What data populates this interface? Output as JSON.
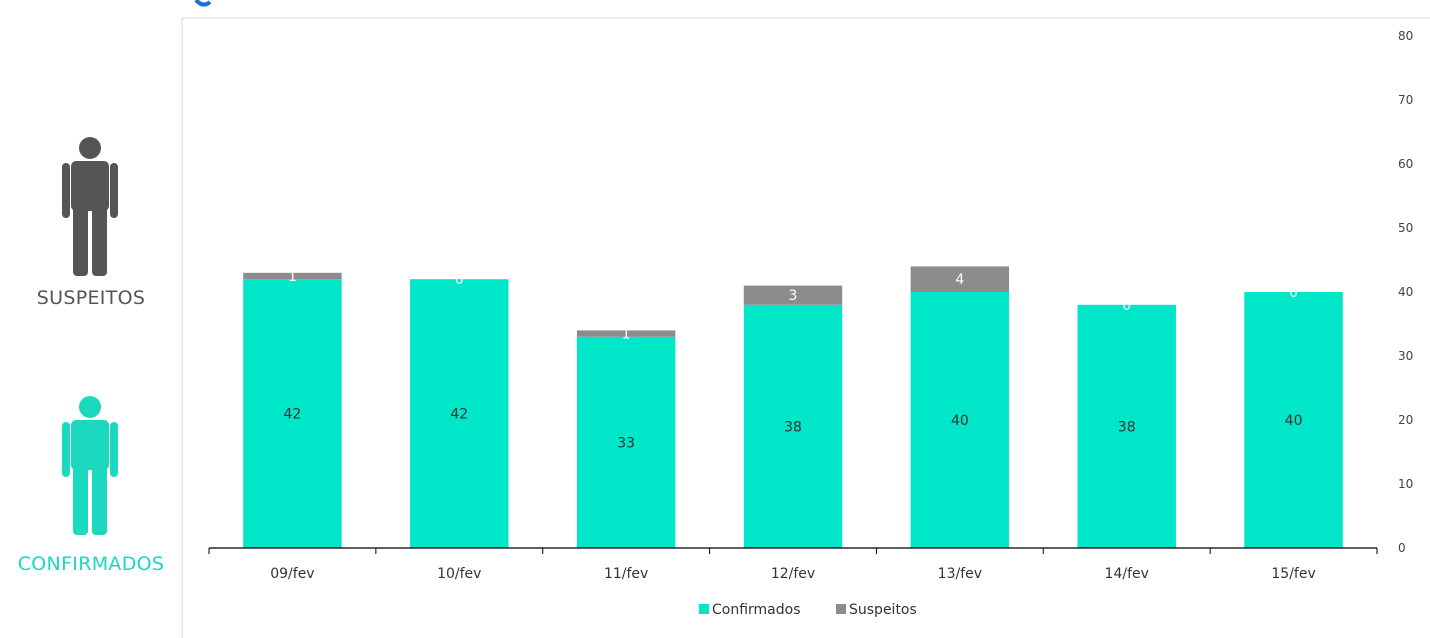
{
  "colors": {
    "confirmados": "#00e6c8",
    "suspeitos": "#8c8c8c",
    "figure_suspeitos": "#555555",
    "figure_confirmados": "#1ad9bf",
    "title_blue": "#1a6fd8",
    "axis": "#000000",
    "frame": "#d9d9d9"
  },
  "sidebar": {
    "suspeitos_icon": "person-icon",
    "suspeitos_label": "SUSPEITOS",
    "confirmados_icon": "person-icon",
    "confirmados_label": "CONFIRMADOS"
  },
  "chart_data": {
    "type": "bar",
    "stacked": true,
    "categories": [
      "09/fev",
      "10/fev",
      "11/fev",
      "12/fev",
      "13/fev",
      "14/fev",
      "15/fev"
    ],
    "series": [
      {
        "name": "Confirmados",
        "values": [
          42,
          42,
          33,
          38,
          40,
          38,
          40
        ]
      },
      {
        "name": "Suspeitos",
        "values": [
          1,
          0,
          1,
          3,
          4,
          0,
          0
        ]
      }
    ],
    "title": "",
    "xlabel": "",
    "ylabel": "",
    "ylim": [
      0,
      80
    ],
    "yticks": [
      0,
      10,
      20,
      30,
      40,
      50,
      60,
      70,
      80
    ],
    "y_axis_side": "right",
    "grid": false,
    "legend": "bottom"
  }
}
